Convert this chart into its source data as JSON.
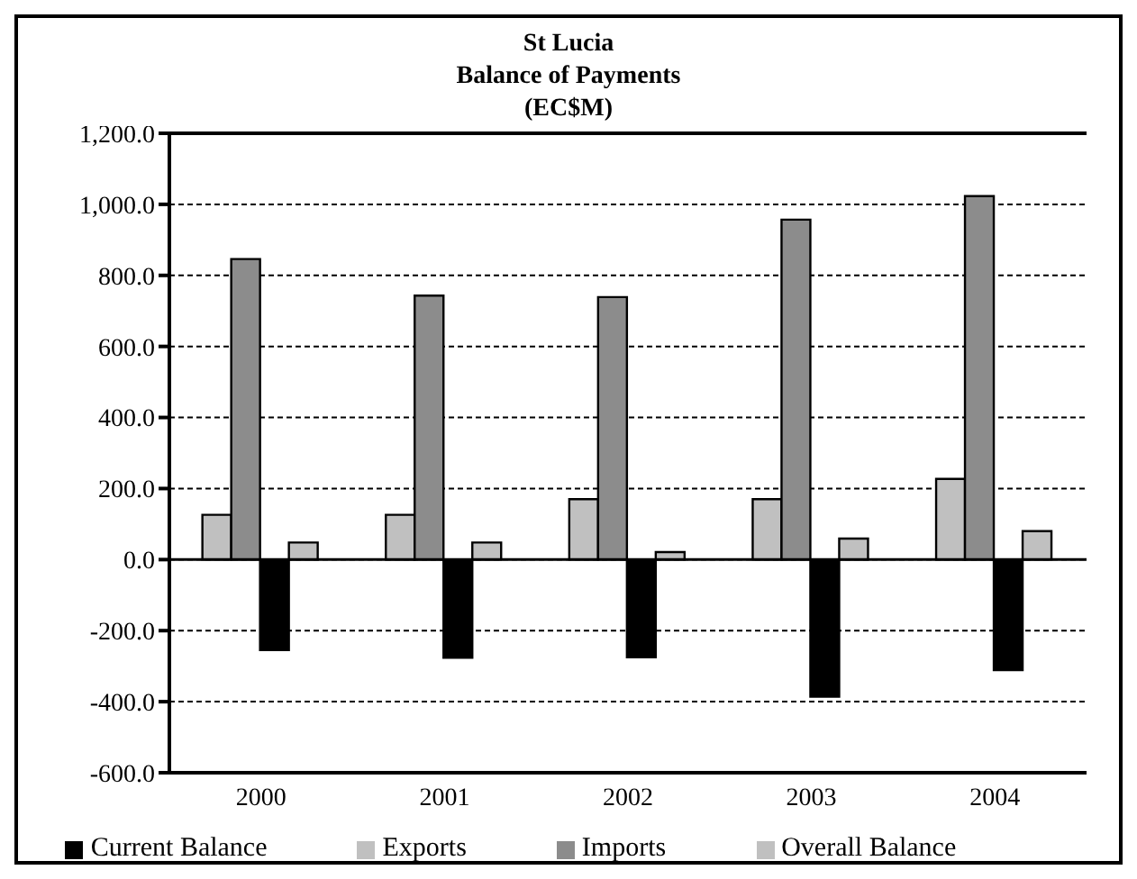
{
  "chart_data": {
    "type": "bar",
    "title": "St Lucia\nBalance of Payments\n(EC$M)",
    "categories": [
      "2000",
      "2001",
      "2002",
      "2003",
      "2004"
    ],
    "series": [
      {
        "name": "Exports",
        "color": "#c0c0c0",
        "values": [
          126,
          126,
          170,
          170,
          227
        ]
      },
      {
        "name": "Imports",
        "color": "#8c8c8c",
        "values": [
          846,
          743,
          739,
          957,
          1023
        ]
      },
      {
        "name": "Current Balance",
        "color": "#000000",
        "values": [
          -255,
          -276,
          -275,
          -386,
          -311
        ]
      },
      {
        "name": "Overall Balance",
        "color": "#c0c0c0",
        "values": [
          48,
          48,
          21,
          59,
          80
        ]
      }
    ],
    "ylim": [
      -600,
      1200
    ],
    "yticks": [
      {
        "value": -600,
        "label": "-600.0"
      },
      {
        "value": -400,
        "label": "-400.0"
      },
      {
        "value": -200,
        "label": "-200.0"
      },
      {
        "value": 0,
        "label": "0.0"
      },
      {
        "value": 200,
        "label": "200.0"
      },
      {
        "value": 400,
        "label": "400.0"
      },
      {
        "value": 600,
        "label": "600.0"
      },
      {
        "value": 800,
        "label": "800.0"
      },
      {
        "value": 1000,
        "label": "1,000.0"
      },
      {
        "value": 1200,
        "label": "1,200.0"
      }
    ],
    "grid": "y",
    "legend": "bottom"
  }
}
